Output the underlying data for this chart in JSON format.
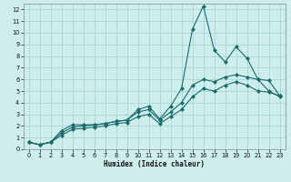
{
  "xlabel": "Humidex (Indice chaleur)",
  "bg_color": "#ceeeed",
  "grid_color": "#aad4d4",
  "line_color": "#1a6b6b",
  "xlim": [
    -0.5,
    23.5
  ],
  "ylim": [
    0,
    12.5
  ],
  "xticks": [
    0,
    1,
    2,
    3,
    4,
    5,
    6,
    7,
    8,
    9,
    10,
    11,
    12,
    13,
    14,
    15,
    16,
    17,
    18,
    19,
    20,
    21,
    22,
    23
  ],
  "yticks": [
    0,
    1,
    2,
    3,
    4,
    5,
    6,
    7,
    8,
    9,
    10,
    11,
    12
  ],
  "line1_x": [
    0,
    1,
    2,
    3,
    4,
    5,
    6,
    7,
    8,
    9,
    10,
    11,
    12,
    13,
    14,
    15,
    16,
    17,
    18,
    19,
    20,
    21,
    22,
    23
  ],
  "line1_y": [
    0.6,
    0.4,
    0.6,
    1.6,
    2.1,
    2.1,
    2.1,
    2.2,
    2.4,
    2.5,
    3.4,
    3.7,
    2.6,
    3.7,
    5.2,
    10.3,
    12.3,
    8.5,
    7.5,
    8.8,
    7.8,
    6.0,
    5.9,
    4.6
  ],
  "line2_x": [
    0,
    1,
    2,
    3,
    4,
    5,
    6,
    7,
    8,
    9,
    10,
    11,
    12,
    13,
    14,
    15,
    16,
    17,
    18,
    19,
    20,
    21,
    22,
    23
  ],
  "line2_y": [
    0.6,
    0.4,
    0.6,
    1.4,
    1.9,
    2.0,
    2.1,
    2.2,
    2.4,
    2.5,
    3.2,
    3.4,
    2.5,
    3.2,
    4.0,
    5.5,
    6.0,
    5.8,
    6.2,
    6.4,
    6.2,
    6.0,
    5.0,
    4.5
  ],
  "line3_x": [
    0,
    1,
    2,
    3,
    4,
    5,
    6,
    7,
    8,
    9,
    10,
    11,
    12,
    13,
    14,
    15,
    16,
    17,
    18,
    19,
    20,
    21,
    22,
    23
  ],
  "line3_y": [
    0.6,
    0.4,
    0.6,
    1.2,
    1.7,
    1.8,
    1.9,
    2.0,
    2.2,
    2.3,
    2.8,
    3.0,
    2.2,
    2.8,
    3.4,
    4.5,
    5.2,
    5.0,
    5.5,
    5.8,
    5.5,
    5.0,
    4.9,
    4.6
  ]
}
